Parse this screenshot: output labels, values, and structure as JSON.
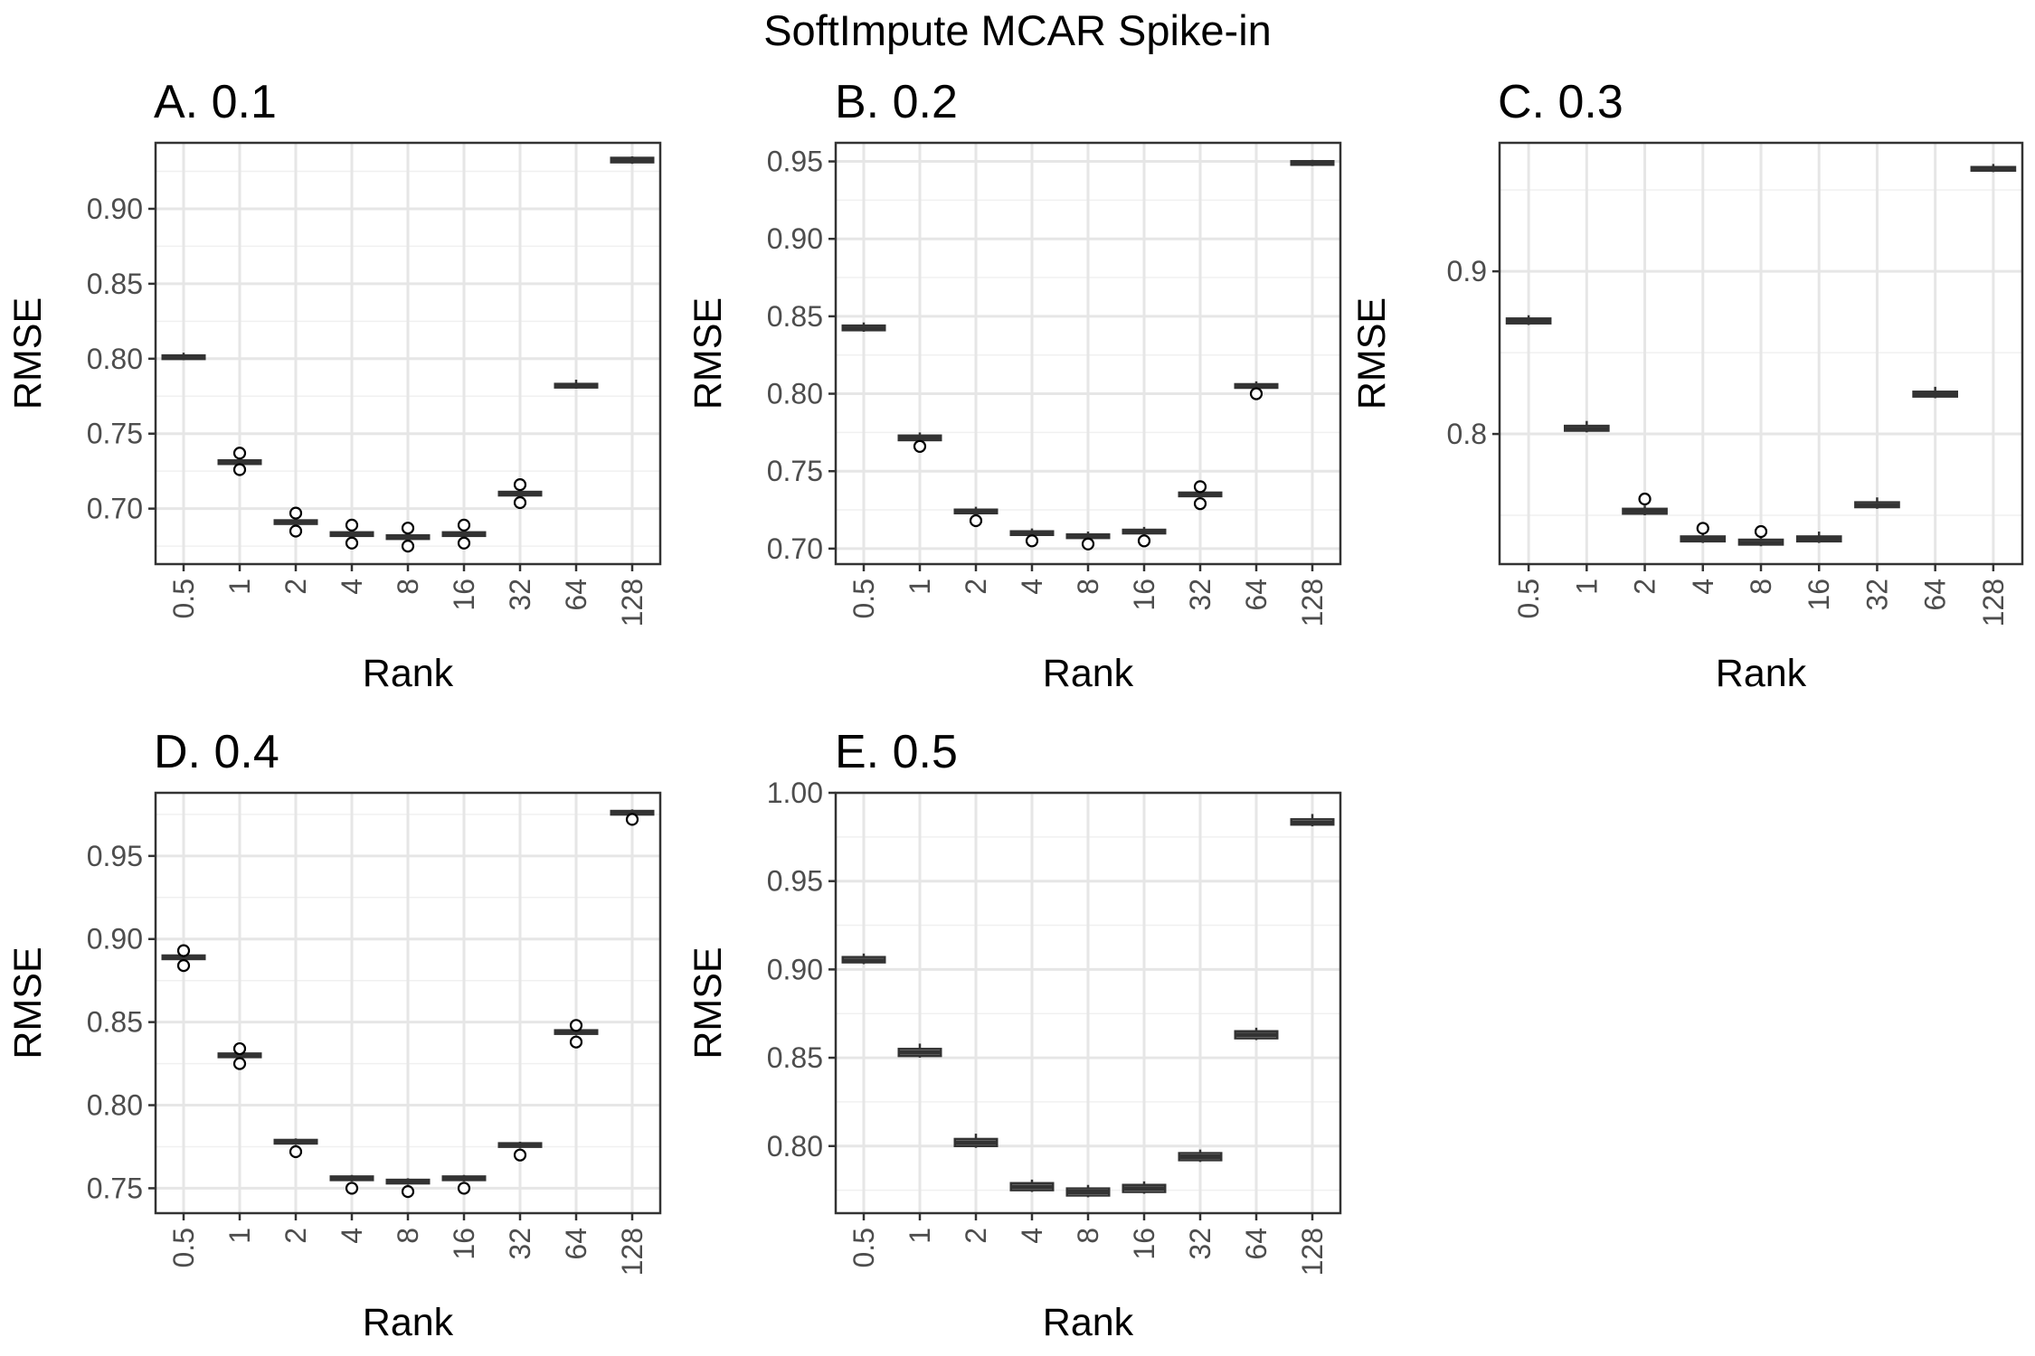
{
  "figure": {
    "title": "SoftImpute MCAR Spike-in"
  },
  "chart_data": [
    {
      "type": "box",
      "title": "A. 0.1",
      "xlabel": "Rank",
      "ylabel": "RMSE",
      "categories": [
        "0.5",
        "1",
        "2",
        "4",
        "8",
        "16",
        "32",
        "64",
        "128"
      ],
      "ylim": [
        0.663,
        0.944
      ],
      "yticks": [
        0.7,
        0.75,
        0.8,
        0.85,
        0.9
      ],
      "ytick_labels": [
        "0.70",
        "0.75",
        "0.80",
        "0.85",
        "0.90"
      ],
      "boxes": [
        {
          "q1": 0.8,
          "median": 0.801,
          "q3": 0.802,
          "whisker_low": 0.799,
          "whisker_high": 0.804,
          "outliers": []
        },
        {
          "q1": 0.73,
          "median": 0.731,
          "q3": 0.732,
          "whisker_low": 0.729,
          "whisker_high": 0.733,
          "outliers": [
            0.737,
            0.726
          ]
        },
        {
          "q1": 0.69,
          "median": 0.691,
          "q3": 0.692,
          "whisker_low": 0.689,
          "whisker_high": 0.693,
          "outliers": [
            0.697,
            0.685
          ]
        },
        {
          "q1": 0.682,
          "median": 0.683,
          "q3": 0.684,
          "whisker_low": 0.681,
          "whisker_high": 0.685,
          "outliers": [
            0.689,
            0.677
          ]
        },
        {
          "q1": 0.68,
          "median": 0.681,
          "q3": 0.682,
          "whisker_low": 0.679,
          "whisker_high": 0.683,
          "outliers": [
            0.687,
            0.675
          ]
        },
        {
          "q1": 0.682,
          "median": 0.683,
          "q3": 0.684,
          "whisker_low": 0.681,
          "whisker_high": 0.685,
          "outliers": [
            0.689,
            0.677
          ]
        },
        {
          "q1": 0.709,
          "median": 0.71,
          "q3": 0.711,
          "whisker_low": 0.708,
          "whisker_high": 0.712,
          "outliers": [
            0.716,
            0.704
          ]
        },
        {
          "q1": 0.781,
          "median": 0.782,
          "q3": 0.783,
          "whisker_low": 0.78,
          "whisker_high": 0.786,
          "outliers": []
        },
        {
          "q1": 0.931,
          "median": 0.932,
          "q3": 0.934,
          "whisker_low": 0.93,
          "whisker_high": 0.935,
          "outliers": []
        }
      ]
    },
    {
      "type": "box",
      "title": "B. 0.2",
      "xlabel": "Rank",
      "ylabel": "RMSE",
      "categories": [
        "0.5",
        "1",
        "2",
        "4",
        "8",
        "16",
        "32",
        "64",
        "128"
      ],
      "ylim": [
        0.69,
        0.962
      ],
      "yticks": [
        0.7,
        0.75,
        0.8,
        0.85,
        0.9,
        0.95
      ],
      "ytick_labels": [
        "0.70",
        "0.75",
        "0.80",
        "0.85",
        "0.90",
        "0.95"
      ],
      "boxes": [
        {
          "q1": 0.841,
          "median": 0.842,
          "q3": 0.844,
          "whisker_low": 0.84,
          "whisker_high": 0.846,
          "outliers": []
        },
        {
          "q1": 0.77,
          "median": 0.771,
          "q3": 0.773,
          "whisker_low": 0.769,
          "whisker_high": 0.775,
          "outliers": [
            0.766
          ]
        },
        {
          "q1": 0.723,
          "median": 0.724,
          "q3": 0.725,
          "whisker_low": 0.721,
          "whisker_high": 0.727,
          "outliers": [
            0.718
          ]
        },
        {
          "q1": 0.709,
          "median": 0.71,
          "q3": 0.711,
          "whisker_low": 0.708,
          "whisker_high": 0.713,
          "outliers": [
            0.705
          ]
        },
        {
          "q1": 0.707,
          "median": 0.708,
          "q3": 0.709,
          "whisker_low": 0.706,
          "whisker_high": 0.711,
          "outliers": [
            0.703
          ]
        },
        {
          "q1": 0.71,
          "median": 0.711,
          "q3": 0.712,
          "whisker_low": 0.709,
          "whisker_high": 0.714,
          "outliers": [
            0.705
          ]
        },
        {
          "q1": 0.734,
          "median": 0.735,
          "q3": 0.736,
          "whisker_low": 0.733,
          "whisker_high": 0.737,
          "outliers": [
            0.74,
            0.729
          ]
        },
        {
          "q1": 0.804,
          "median": 0.805,
          "q3": 0.806,
          "whisker_low": 0.803,
          "whisker_high": 0.808,
          "outliers": [
            0.8
          ]
        },
        {
          "q1": 0.948,
          "median": 0.949,
          "q3": 0.95,
          "whisker_low": 0.947,
          "whisker_high": 0.951,
          "outliers": []
        }
      ]
    },
    {
      "type": "box",
      "title": "C. 0.3",
      "xlabel": "Rank",
      "ylabel": "RMSE",
      "categories": [
        "0.5",
        "1",
        "2",
        "4",
        "8",
        "16",
        "32",
        "64",
        "128"
      ],
      "ylim": [
        0.72,
        0.979
      ],
      "yticks": [
        0.8,
        0.9
      ],
      "ytick_labels": [
        "0.8",
        "0.9"
      ],
      "boxes": [
        {
          "q1": 0.868,
          "median": 0.869,
          "q3": 0.871,
          "whisker_low": 0.867,
          "whisker_high": 0.873,
          "outliers": []
        },
        {
          "q1": 0.802,
          "median": 0.803,
          "q3": 0.805,
          "whisker_low": 0.801,
          "whisker_high": 0.808,
          "outliers": []
        },
        {
          "q1": 0.751,
          "median": 0.752,
          "q3": 0.754,
          "whisker_low": 0.75,
          "whisker_high": 0.756,
          "outliers": [
            0.76
          ]
        },
        {
          "q1": 0.734,
          "median": 0.735,
          "q3": 0.737,
          "whisker_low": 0.733,
          "whisker_high": 0.739,
          "outliers": [
            0.742
          ]
        },
        {
          "q1": 0.732,
          "median": 0.733,
          "q3": 0.735,
          "whisker_low": 0.731,
          "whisker_high": 0.737,
          "outliers": [
            0.74
          ]
        },
        {
          "q1": 0.734,
          "median": 0.735,
          "q3": 0.737,
          "whisker_low": 0.733,
          "whisker_high": 0.74,
          "outliers": []
        },
        {
          "q1": 0.755,
          "median": 0.756,
          "q3": 0.758,
          "whisker_low": 0.754,
          "whisker_high": 0.761,
          "outliers": []
        },
        {
          "q1": 0.823,
          "median": 0.824,
          "q3": 0.826,
          "whisker_low": 0.822,
          "whisker_high": 0.829,
          "outliers": []
        },
        {
          "q1": 0.962,
          "median": 0.963,
          "q3": 0.964,
          "whisker_low": 0.961,
          "whisker_high": 0.966,
          "outliers": []
        }
      ]
    },
    {
      "type": "box",
      "title": "D. 0.4",
      "xlabel": "Rank",
      "ylabel": "RMSE",
      "categories": [
        "0.5",
        "1",
        "2",
        "4",
        "8",
        "16",
        "32",
        "64",
        "128"
      ],
      "ylim": [
        0.735,
        0.988
      ],
      "yticks": [
        0.75,
        0.8,
        0.85,
        0.9,
        0.95
      ],
      "ytick_labels": [
        "0.75",
        "0.80",
        "0.85",
        "0.90",
        "0.95"
      ],
      "boxes": [
        {
          "q1": 0.888,
          "median": 0.889,
          "q3": 0.89,
          "whisker_low": 0.887,
          "whisker_high": 0.891,
          "outliers": [
            0.893,
            0.884
          ]
        },
        {
          "q1": 0.829,
          "median": 0.83,
          "q3": 0.831,
          "whisker_low": 0.828,
          "whisker_high": 0.832,
          "outliers": [
            0.834,
            0.825
          ]
        },
        {
          "q1": 0.777,
          "median": 0.778,
          "q3": 0.779,
          "whisker_low": 0.776,
          "whisker_high": 0.78,
          "outliers": [
            0.772
          ]
        },
        {
          "q1": 0.755,
          "median": 0.756,
          "q3": 0.757,
          "whisker_low": 0.754,
          "whisker_high": 0.758,
          "outliers": [
            0.75
          ]
        },
        {
          "q1": 0.753,
          "median": 0.754,
          "q3": 0.755,
          "whisker_low": 0.752,
          "whisker_high": 0.756,
          "outliers": [
            0.748
          ]
        },
        {
          "q1": 0.755,
          "median": 0.756,
          "q3": 0.757,
          "whisker_low": 0.754,
          "whisker_high": 0.758,
          "outliers": [
            0.75
          ]
        },
        {
          "q1": 0.775,
          "median": 0.776,
          "q3": 0.777,
          "whisker_low": 0.774,
          "whisker_high": 0.778,
          "outliers": [
            0.77
          ]
        },
        {
          "q1": 0.843,
          "median": 0.844,
          "q3": 0.845,
          "whisker_low": 0.842,
          "whisker_high": 0.846,
          "outliers": [
            0.848,
            0.838
          ]
        },
        {
          "q1": 0.975,
          "median": 0.976,
          "q3": 0.977,
          "whisker_low": 0.974,
          "whisker_high": 0.978,
          "outliers": [
            0.972
          ]
        }
      ]
    },
    {
      "type": "box",
      "title": "E. 0.5",
      "xlabel": "Rank",
      "ylabel": "RMSE",
      "categories": [
        "0.5",
        "1",
        "2",
        "4",
        "8",
        "16",
        "32",
        "64",
        "128"
      ],
      "ylim": [
        0.762,
        1.0
      ],
      "yticks": [
        0.8,
        0.85,
        0.9,
        0.95,
        1.0
      ],
      "ytick_labels": [
        "0.80",
        "0.85",
        "0.90",
        "0.95",
        "1.00"
      ],
      "boxes": [
        {
          "q1": 0.904,
          "median": 0.905,
          "q3": 0.907,
          "whisker_low": 0.903,
          "whisker_high": 0.909,
          "outliers": []
        },
        {
          "q1": 0.851,
          "median": 0.853,
          "q3": 0.855,
          "whisker_low": 0.85,
          "whisker_high": 0.858,
          "outliers": []
        },
        {
          "q1": 0.8,
          "median": 0.802,
          "q3": 0.804,
          "whisker_low": 0.799,
          "whisker_high": 0.807,
          "outliers": []
        },
        {
          "q1": 0.775,
          "median": 0.777,
          "q3": 0.779,
          "whisker_low": 0.774,
          "whisker_high": 0.781,
          "outliers": []
        },
        {
          "q1": 0.772,
          "median": 0.774,
          "q3": 0.776,
          "whisker_low": 0.771,
          "whisker_high": 0.778,
          "outliers": []
        },
        {
          "q1": 0.774,
          "median": 0.776,
          "q3": 0.778,
          "whisker_low": 0.773,
          "whisker_high": 0.78,
          "outliers": []
        },
        {
          "q1": 0.792,
          "median": 0.794,
          "q3": 0.796,
          "whisker_low": 0.791,
          "whisker_high": 0.798,
          "outliers": []
        },
        {
          "q1": 0.861,
          "median": 0.863,
          "q3": 0.865,
          "whisker_low": 0.86,
          "whisker_high": 0.867,
          "outliers": []
        },
        {
          "q1": 0.982,
          "median": 0.983,
          "q3": 0.985,
          "whisker_low": 0.981,
          "whisker_high": 0.988,
          "outliers": []
        }
      ]
    }
  ]
}
